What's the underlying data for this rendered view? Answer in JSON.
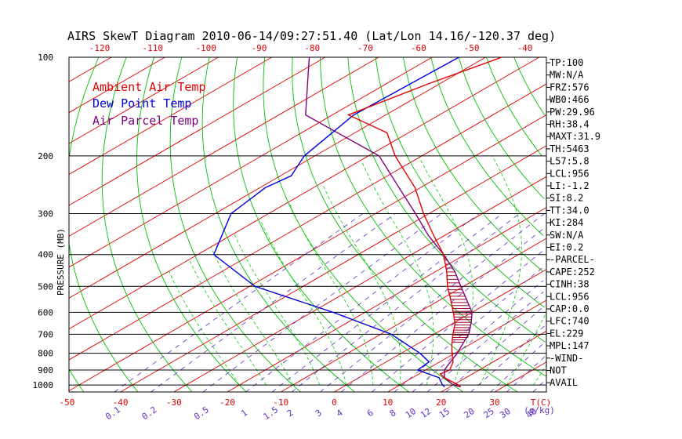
{
  "colors": {
    "ambient": "#e00000",
    "dewpoint": "#0000e0",
    "parcel": "#800080",
    "dry_adiabat": "#00c000",
    "moist_adiabat": "#00d000",
    "mixing_ratio": "#6030c0",
    "isobar": "#000000",
    "background": "#ffffff"
  },
  "chart_data": {
    "type": "skewt",
    "title": "AIRS SkewT Diagram 2010-06-14/09:27:51.40 (Lat/Lon 14.16/-120.37 deg)",
    "ylabel": "PRESSURE (MB)",
    "xlabel": "T(C)",
    "mixing_ratio_unit": "(g/kg)",
    "ylim": [
      1050,
      100
    ],
    "yscale": "log",
    "xlim": [
      -55,
      40
    ],
    "pressure_ticks": [
      "100",
      "200",
      "300",
      "400",
      "500",
      "600",
      "700",
      "800",
      "900",
      "1000"
    ],
    "pressure_tick_values": [
      100,
      200,
      300,
      400,
      500,
      600,
      700,
      800,
      900,
      1000
    ],
    "bottom_temp_ticks": [
      "-50",
      "-40",
      "-30",
      "-20",
      "-10",
      "0",
      "10",
      "20",
      "30"
    ],
    "bottom_temp_values": [
      -50,
      -40,
      -30,
      -20,
      -10,
      0,
      10,
      20,
      30
    ],
    "top_temp_ticks": [
      "-120",
      "-110",
      "-100",
      "-90",
      "-80",
      "-70",
      "-60",
      "-50",
      "-40"
    ],
    "top_temp_values": [
      -120,
      -110,
      -100,
      -90,
      -80,
      -70,
      -60,
      -50,
      -40
    ],
    "mixing_ratio_labels": [
      "0.1",
      "0.2",
      "0.5",
      "1",
      "1.5",
      "2",
      "3",
      "4",
      "6",
      "8",
      "10",
      "12",
      "15",
      "20",
      "25",
      "30",
      "40"
    ],
    "mixing_ratio_values": [
      0.1,
      0.2,
      0.5,
      1,
      1.5,
      2,
      3,
      4,
      6,
      8,
      10,
      12,
      15,
      20,
      25,
      30,
      40
    ],
    "legend": [
      "Ambient Air Temp",
      "Dew Point Temp",
      "Air Parcel Temp"
    ],
    "series": [
      {
        "name": "Ambient Air Temp",
        "pressure": [
          100,
          120,
          150,
          170,
          200,
          250,
          300,
          350,
          400,
          450,
          500,
          550,
          600,
          650,
          700,
          750,
          800,
          850,
          900,
          925,
          950,
          975,
          1000,
          1013
        ],
        "temperature": [
          -77,
          -82,
          -87,
          -74,
          -65,
          -51,
          -41,
          -32,
          -24,
          -18,
          -13,
          -8,
          -3.5,
          0.5,
          3.5,
          6.5,
          9.5,
          12.5,
          14.5,
          14,
          16,
          18.5,
          21,
          22
        ]
      },
      {
        "name": "Dew Point Temp",
        "pressure": [
          100,
          150,
          200,
          230,
          250,
          300,
          400,
          500,
          600,
          700,
          800,
          850,
          900,
          950,
          1000,
          1013
        ],
        "temperature": [
          -85,
          -86,
          -82,
          -78,
          -79,
          -77,
          -67,
          -49,
          -26,
          -8,
          3.5,
          8,
          8.5,
          15,
          18,
          19
        ]
      },
      {
        "name": "Air Parcel Temp",
        "pressure": [
          100,
          150,
          200,
          250,
          300,
          350,
          400,
          450,
          500,
          550,
          600,
          650,
          700,
          750,
          800,
          850,
          900,
          950,
          1000,
          1013
        ],
        "temperature": [
          -113,
          -95,
          -68,
          -54,
          -42.5,
          -33,
          -24,
          -16.5,
          -10.5,
          -5,
          0,
          3.5,
          6.5,
          8.5,
          10.5,
          12,
          13.5,
          16,
          20,
          22
        ]
      }
    ],
    "cape_area": {
      "pressure_bottom": 740,
      "pressure_top": 400
    },
    "indices": [
      "TP:100",
      "MW:N/A",
      "FRZ:576",
      "WB0:466",
      "PW:29.96",
      "RH:38.4",
      "MAXT:31.9",
      "TH:5463",
      "L57:5.8",
      "LCL:956",
      "LI:-1.2",
      "SI:8.2",
      "TT:34.0",
      "KI:284",
      "SW:N/A",
      "EI:0.2",
      "-PARCEL-",
      "CAPE:252",
      "CINH:38",
      "LCL:956",
      "CAP:0.0",
      "LFC:740",
      "EL:229",
      "MPL:147",
      "-WIND-",
      "NOT",
      "AVAIL"
    ]
  }
}
